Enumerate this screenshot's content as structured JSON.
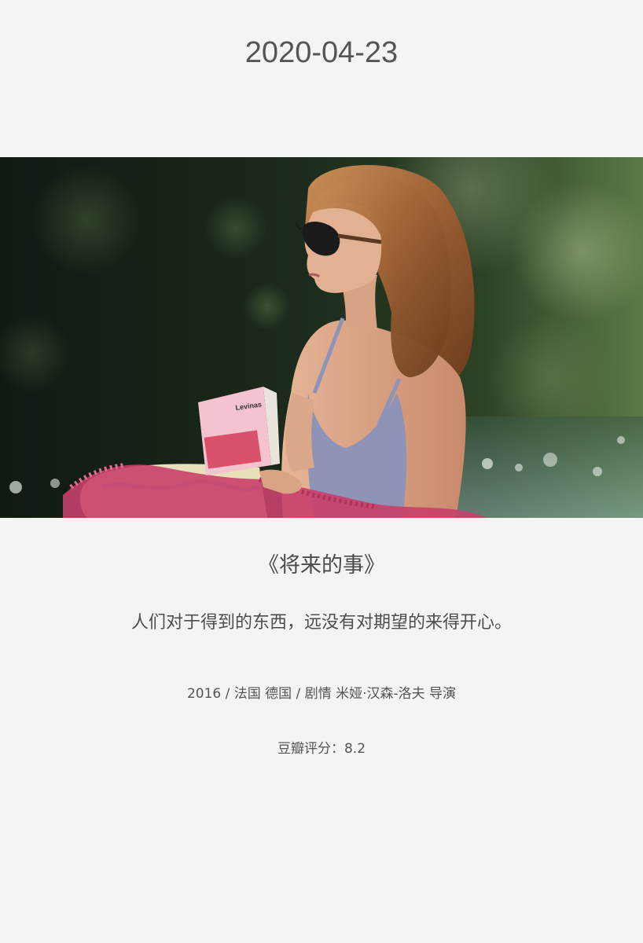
{
  "card": {
    "date": "2020-04-23",
    "image": {
      "subject": "movie-still",
      "book_cover_text": "Levinas"
    },
    "title": "《将来的事》",
    "quote": "人们对于得到的东西，远没有对期望的来得开心。",
    "info": "2016 / 法国 德国 / 剧情 米娅·汉森-洛夫 导演",
    "rating": "豆瓣评分：8.2"
  },
  "colors": {
    "background": "#f4f4f4",
    "text": "#4a4a4a",
    "swimsuit": "#8e93b8",
    "towel": "#c8406a"
  }
}
